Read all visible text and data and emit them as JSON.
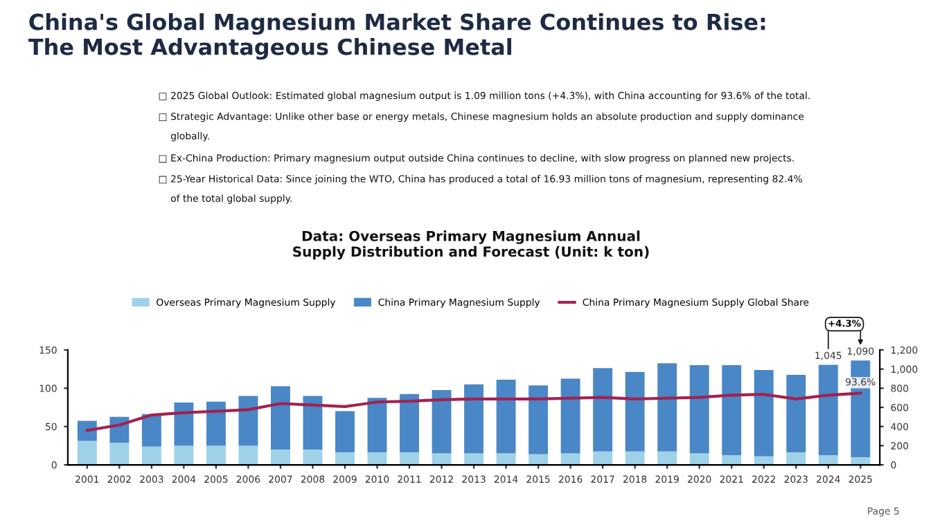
{
  "chart_data": {
    "type": "bar",
    "title": "China's Global Magnesium Market Share Continues to Rise:\nThe Most Advantageous Chinese Metal",
    "subtitle": "Data: Overseas Primary Magnesium Annual\nSupply Distribution and Forecast (Unit: k ton)",
    "annotations": [
      "□ 2025 Global Outlook: Estimated global magnesium output is 1.09 million tons (+4.3%), with China accounting for 93.6% of the total.",
      "□ Strategic Advantage: Unlike other base or energy metals, Chinese magnesium holds an absolute production and supply dominance\n    globally.",
      "□ Ex-China Production: Primary magnesium output outside China continues to decline, with slow progress on planned new projects.",
      "□ 25-Year Historical Data: Since joining the WTO, China has produced a total of 16.93 million tons of magnesium, representing 82.4%\n    of the total global supply.",
      "+4.3%",
      "Page 5"
    ],
    "categories": [
      "2001",
      "2002",
      "2003",
      "2004",
      "2005",
      "2006",
      "2007",
      "2008",
      "2009",
      "2010",
      "2011",
      "2012",
      "2013",
      "2014",
      "2015",
      "2016",
      "2017",
      "2018",
      "2019",
      "2020",
      "2021",
      "2022",
      "2023",
      "2024",
      "2025"
    ],
    "stacked": true,
    "series": [
      {
        "name": "Overseas Primary Magnesium Supply",
        "axis": "y2",
        "color": "#9fd2e8",
        "values": [
          250,
          230,
          190,
          200,
          200,
          200,
          160,
          160,
          130,
          130,
          130,
          120,
          120,
          120,
          110,
          120,
          140,
          140,
          140,
          120,
          100,
          90,
          130,
          100,
          80
        ]
      },
      {
        "name": "China Primary Magnesium Supply",
        "axis": "y2",
        "color": "#4a87c6",
        "values": [
          210,
          270,
          340,
          450,
          460,
          520,
          660,
          560,
          430,
          570,
          610,
          660,
          720,
          770,
          720,
          780,
          870,
          830,
          920,
          920,
          940,
          900,
          810,
          945,
          1010
        ]
      },
      {
        "name": "China Primary Magnesium Supply Global Share",
        "type": "line",
        "axis": "y",
        "color": "#a3214f",
        "values": [
          45,
          52,
          65,
          68,
          70,
          72,
          80,
          78,
          76,
          82,
          83,
          85,
          86,
          86,
          86,
          87,
          88,
          86,
          87,
          88,
          91,
          92,
          86,
          91,
          93.6
        ],
        "value_labels": [
          null,
          null,
          null,
          null,
          null,
          null,
          null,
          null,
          null,
          null,
          null,
          null,
          null,
          null,
          null,
          null,
          null,
          null,
          null,
          null,
          null,
          null,
          null,
          null,
          "93.6%"
        ]
      }
    ],
    "totals": [
      null,
      null,
      null,
      null,
      null,
      null,
      null,
      null,
      null,
      null,
      null,
      null,
      null,
      null,
      null,
      null,
      null,
      null,
      null,
      null,
      null,
      null,
      null,
      "1,045",
      "1,090"
    ],
    "ylim": [
      0,
      150
    ],
    "yticks": [
      0,
      50,
      100,
      150
    ],
    "y2lim": [
      0,
      1200
    ],
    "y2ticks": [
      0,
      200,
      400,
      600,
      800,
      {
        "value": 1000,
        "label": "1,000"
      },
      {
        "value": 1200,
        "label": "1,200"
      }
    ],
    "legend": "top"
  }
}
